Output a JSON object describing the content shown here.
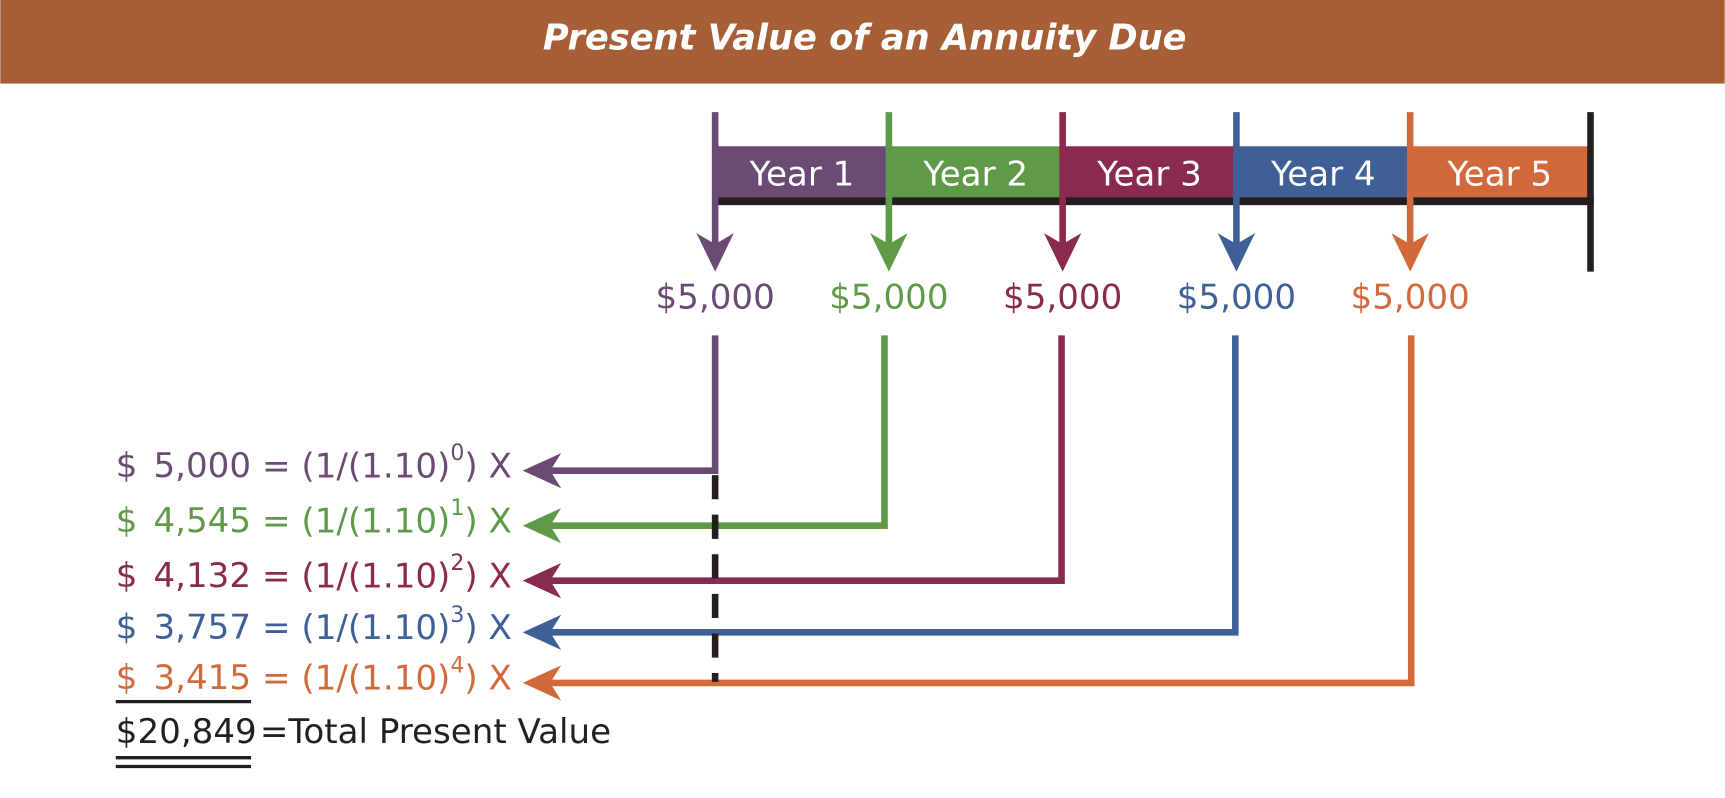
{
  "header": {
    "title": "Present Value of an Annuity Due"
  },
  "timeline": {
    "segments": [
      {
        "label": "Year 1",
        "color": "#6b4a74"
      },
      {
        "label": "Year 2",
        "color": "#5e9a48"
      },
      {
        "label": "Year 3",
        "color": "#8a2a4f"
      },
      {
        "label": "Year 4",
        "color": "#3f5f97"
      },
      {
        "label": "Year 5",
        "color": "#d2693a"
      }
    ],
    "payments": [
      "$5,000",
      "$5,000",
      "$5,000",
      "$5,000",
      "$5,000"
    ]
  },
  "rows": [
    {
      "symbol": "$",
      "amount": "5,000",
      "formula": "= (1/(1.10)",
      "exponent": "0",
      "tail": ") X"
    },
    {
      "symbol": "$",
      "amount": "4,545",
      "formula": "= (1/(1.10)",
      "exponent": "1",
      "tail": ") X"
    },
    {
      "symbol": "$",
      "amount": "4,132",
      "formula": "= (1/(1.10)",
      "exponent": "2",
      "tail": ") X"
    },
    {
      "symbol": "$",
      "amount": "3,757",
      "formula": "= (1/(1.10)",
      "exponent": "3",
      "tail": ") X"
    },
    {
      "symbol": "$",
      "amount": "3,415",
      "formula": "= (1/(1.10)",
      "exponent": "4",
      "tail": ") X"
    }
  ],
  "total": {
    "amount": "$20,849",
    "label": "=Total Present Value"
  }
}
